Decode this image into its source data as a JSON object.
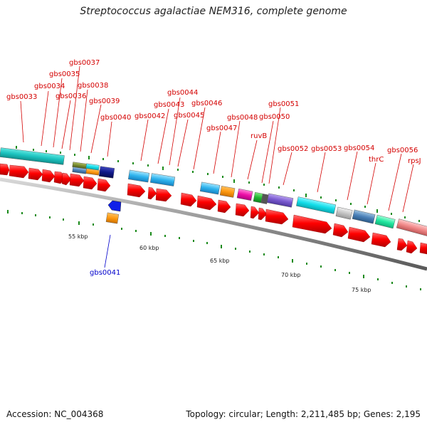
{
  "header": {
    "title": "Streptococcus agalactiae NEM316, complete genome"
  },
  "footer": {
    "accession": "Accession: NC_004368",
    "summary": "Topology: circular; Length: 2,211,485 bp; Genes: 2,195"
  },
  "map": {
    "scale_labels": [
      "55 kbp",
      "60 kbp",
      "65 kbp",
      "70 kbp",
      "75 kbp"
    ],
    "gene_labels": [
      "gbs0033",
      "gbs0034",
      "gbs0035",
      "gbs0036",
      "gbs0037",
      "gbs0038",
      "gbs0039",
      "gbs0040",
      "gbs0042",
      "gbs0043",
      "gbs0044",
      "gbs0045",
      "gbs0046",
      "gbs0047",
      "gbs0048",
      "ruvB",
      "gbs0050",
      "gbs0051",
      "gbs0052",
      "gbs0053",
      "gbs0054",
      "thrC",
      "gbs0056",
      "rpsJ"
    ],
    "inner_gene_label": "gbs0041",
    "colors": {
      "label_red": "#d40000",
      "label_blue": "#0000cc",
      "cds_red": "#ff0000",
      "backbone": "#888888",
      "tick_green": "#1a8a1a"
    }
  }
}
